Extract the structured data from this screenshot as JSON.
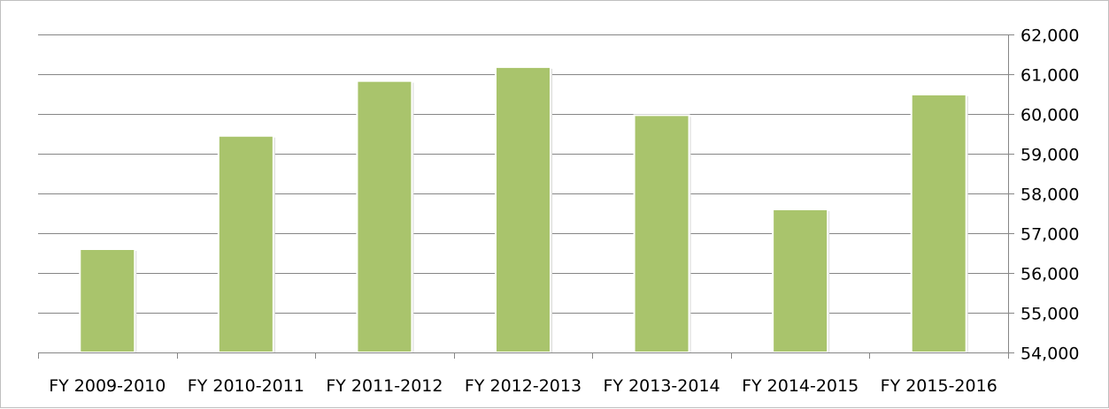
{
  "chart_data": {
    "type": "bar",
    "title": "",
    "xlabel": "",
    "ylabel": "",
    "categories": [
      "FY 2009-2010",
      "FY 2010-2011",
      "FY 2011-2012",
      "FY 2012-2013",
      "FY 2013-2014",
      "FY 2014-2015",
      "FY 2015-2016"
    ],
    "values": [
      56600,
      59450,
      60830,
      61180,
      59970,
      57600,
      60490
    ],
    "ylim": [
      54000,
      62000
    ],
    "y_ticks": [
      54000,
      55000,
      56000,
      57000,
      58000,
      59000,
      60000,
      61000,
      62000
    ],
    "y_tick_labels": [
      "54,000",
      "55,000",
      "56,000",
      "57,000",
      "58,000",
      "59,000",
      "60,000",
      "61,000",
      "62,000"
    ],
    "y_axis_position": "right",
    "grid": true,
    "legend": "none",
    "colors": {
      "bar": "#9bbb59",
      "bar_fill": "#a9c46c",
      "grid": "#868686",
      "axis": "#868686"
    }
  }
}
